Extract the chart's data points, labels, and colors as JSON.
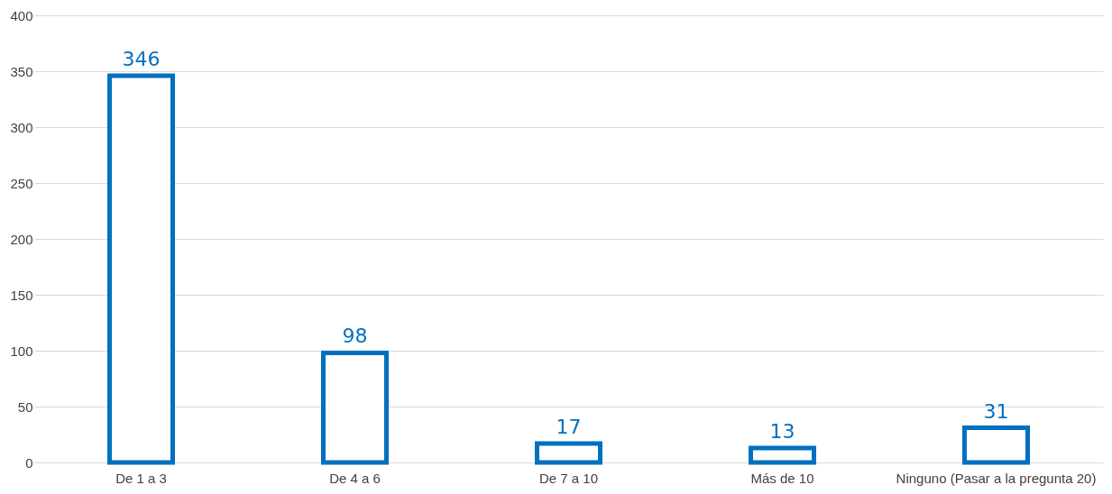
{
  "chart_data": {
    "type": "bar",
    "categories": [
      "De 1 a 3",
      "De 4 a 6",
      "De 7 a 10",
      "Más de 10",
      "Ninguno (Pasar a la pregunta 20)"
    ],
    "values": [
      346,
      98,
      17,
      13,
      31
    ],
    "color": "#0070c0",
    "ylim": [
      0,
      400
    ],
    "yticks": [
      0,
      50,
      100,
      150,
      200,
      250,
      300,
      350,
      400
    ],
    "grid": "y",
    "data_labels": true
  }
}
